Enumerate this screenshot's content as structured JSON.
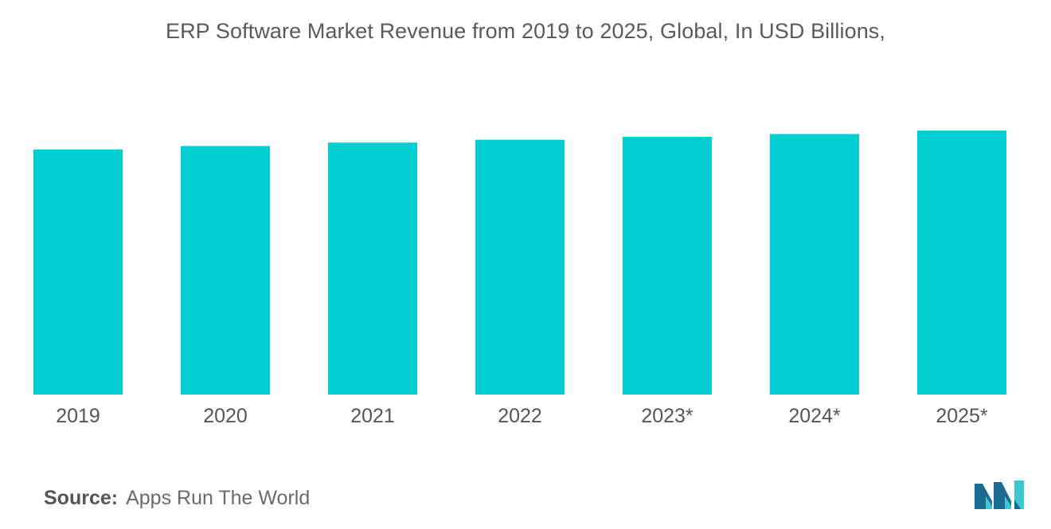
{
  "colors": {
    "bar": "#00CED1",
    "text": "#555555",
    "logo_dark": "#1b6a8f",
    "logo_light": "#3fc6cf"
  },
  "chart_data": {
    "type": "bar",
    "title": "ERP Software Market Revenue from 2019 to 2025, Global, In USD Billions,",
    "categories": [
      "2019",
      "2020",
      "2021",
      "2022",
      "2023*",
      "2024*",
      "2025*"
    ],
    "values": [
      43.0,
      43.6,
      44.2,
      44.7,
      45.2,
      45.7,
      46.3
    ],
    "xlabel": "",
    "ylabel": "",
    "ylim": [
      0,
      60
    ],
    "grid": false,
    "legend": "none"
  },
  "source": {
    "label": "Source:",
    "value": "Apps Run The World"
  },
  "logo": {
    "icon": "mordor-intelligence-logo-icon"
  }
}
